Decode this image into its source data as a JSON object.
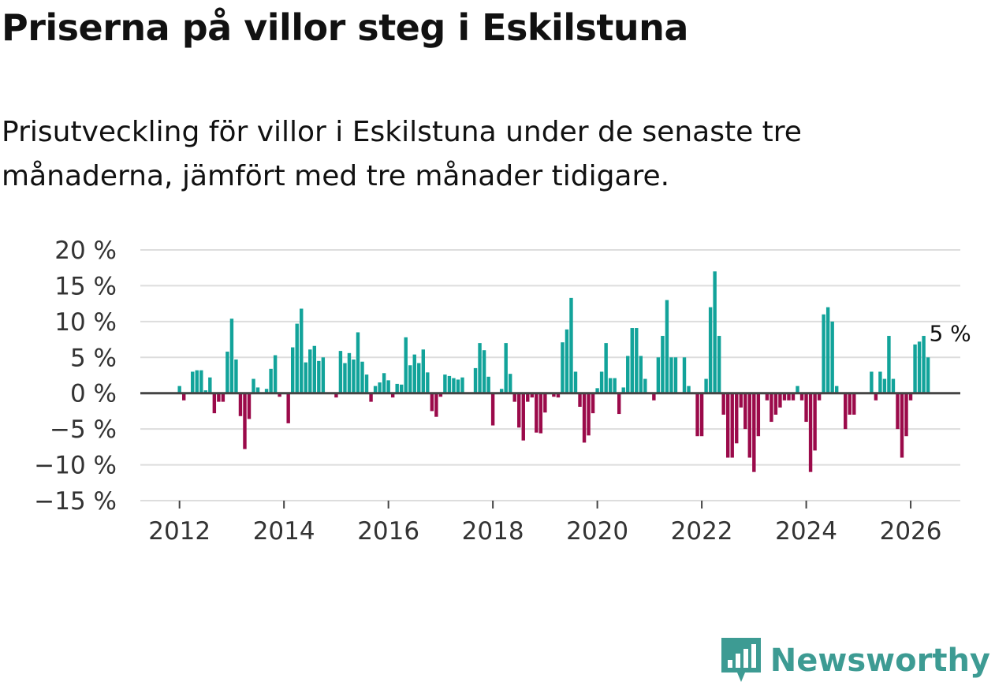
{
  "title": "Priserna på villor steg i Eskilstuna",
  "subtitle": "Prisutveckling för villor i Eskilstuna under de senaste tre månaderna, jämfört med tre månader tidigare.",
  "brand": "Newsworthy",
  "colors": {
    "positive": "#12a39a",
    "negative": "#9b0a4a",
    "brand": "#3d9b93",
    "grid": "#dddddd",
    "zero": "#444444"
  },
  "chart_data": {
    "type": "bar",
    "title": "Priserna på villor steg i Eskilstuna",
    "xlabel": "",
    "ylabel": "",
    "ylim": [
      -15,
      20
    ],
    "y_ticks": [
      20,
      15,
      10,
      5,
      0,
      -5,
      -10,
      -15
    ],
    "y_tick_labels": [
      "20 %",
      "15 %",
      "10 %",
      "5 %",
      "0 %",
      "−5 %",
      "−10 %",
      "−15 %"
    ],
    "x_ticks": [
      2012,
      2014,
      2016,
      2018,
      2020,
      2022,
      2024,
      2026
    ],
    "x_tick_labels": [
      "2012",
      "2014",
      "2016",
      "2018",
      "2020",
      "2022",
      "2024",
      "2026"
    ],
    "x_range": [
      2011.25,
      2026.95
    ],
    "first_period": 2012.0,
    "step": 0.08333,
    "series": [
      {
        "name": "Prisutveckling",
        "values": [
          1,
          -1,
          0,
          3,
          3.2,
          3.2,
          0.4,
          2.2,
          -2.8,
          -1.2,
          -1.2,
          5.8,
          10.4,
          4.7,
          -3.2,
          -7.8,
          -3.6,
          2,
          0.8,
          0,
          0.6,
          3.4,
          5.3,
          -0.5,
          0,
          -4.2,
          6.4,
          9.7,
          11.8,
          4.3,
          6.1,
          6.6,
          4.5,
          5,
          0,
          0,
          -0.6,
          5.9,
          4.2,
          5.6,
          4.7,
          8.5,
          4.4,
          2.6,
          -1.2,
          1,
          1.5,
          2.8,
          1.8,
          -0.6,
          1.3,
          1.2,
          7.8,
          3.9,
          5.4,
          4.2,
          6.1,
          2.9,
          -2.5,
          -3.3,
          -0.5,
          2.6,
          2.4,
          2.1,
          1.9,
          2.2,
          0,
          0,
          3.5,
          7,
          6,
          2.3,
          -4.5,
          0,
          0.6,
          7,
          2.7,
          -1.2,
          -4.8,
          -6.6,
          -1.2,
          -0.6,
          -5.5,
          -5.6,
          -2.7,
          0,
          -0.5,
          -0.6,
          7.1,
          8.9,
          13.3,
          3,
          -1.9,
          -6.9,
          -5.9,
          -2.8,
          0.7,
          3,
          7,
          2.1,
          2.1,
          -2.9,
          0.8,
          5.2,
          9.1,
          9.1,
          5.2,
          2,
          0,
          -1,
          5,
          8,
          13,
          5,
          5,
          0,
          5,
          1,
          0,
          -6,
          -6,
          2,
          12,
          17,
          8,
          -3,
          -9,
          -9,
          -7,
          -2,
          -5,
          -9,
          -11,
          -6,
          0,
          -1,
          -4,
          -3,
          -2,
          -1,
          -1,
          -1,
          1,
          -1,
          -4,
          -11,
          -8,
          -1,
          11,
          12,
          10,
          1,
          0,
          -5,
          -3,
          -3,
          0,
          0,
          0,
          3,
          -1,
          3,
          2,
          8,
          2,
          -5,
          -9,
          -6,
          -1,
          6.8,
          7.2,
          8,
          5
        ]
      }
    ],
    "annotation": {
      "label": "5 %",
      "value": 5
    }
  }
}
